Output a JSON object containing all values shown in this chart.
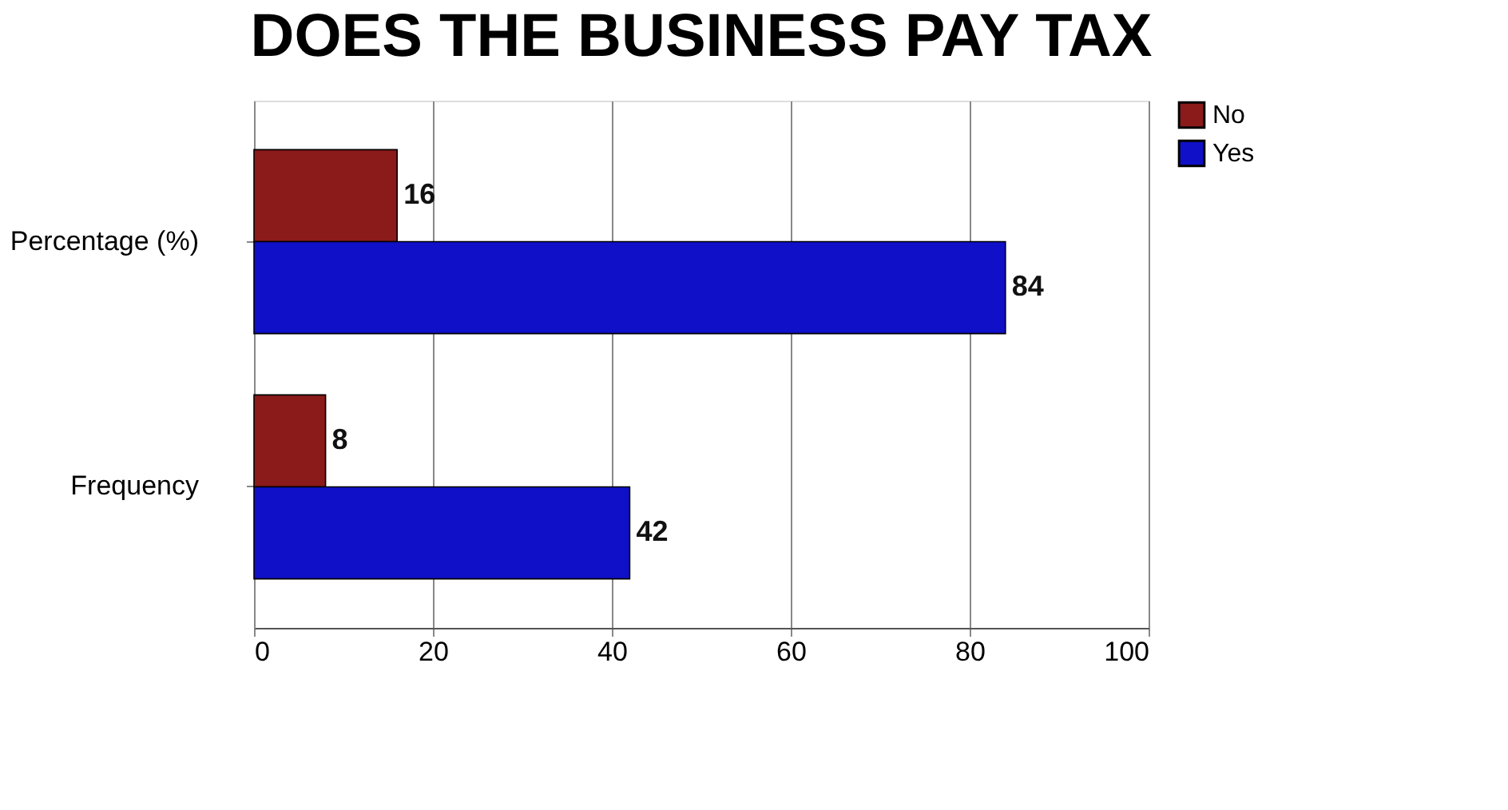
{
  "chart_data": {
    "type": "bar",
    "title": "DOES THE BUSINESS PAY TAX",
    "orientation": "horizontal",
    "categories": [
      "Percentage (%)",
      "Frequency"
    ],
    "series": [
      {
        "name": "No",
        "color": "#8b1a1a",
        "values": [
          16,
          8
        ]
      },
      {
        "name": "Yes",
        "color": "#1010c8",
        "values": [
          84,
          42
        ]
      }
    ],
    "xlim": [
      0,
      100
    ],
    "xticks": [
      0,
      20,
      40,
      60,
      80,
      100
    ],
    "grid": "x",
    "legend": "right",
    "data_labels": true
  }
}
